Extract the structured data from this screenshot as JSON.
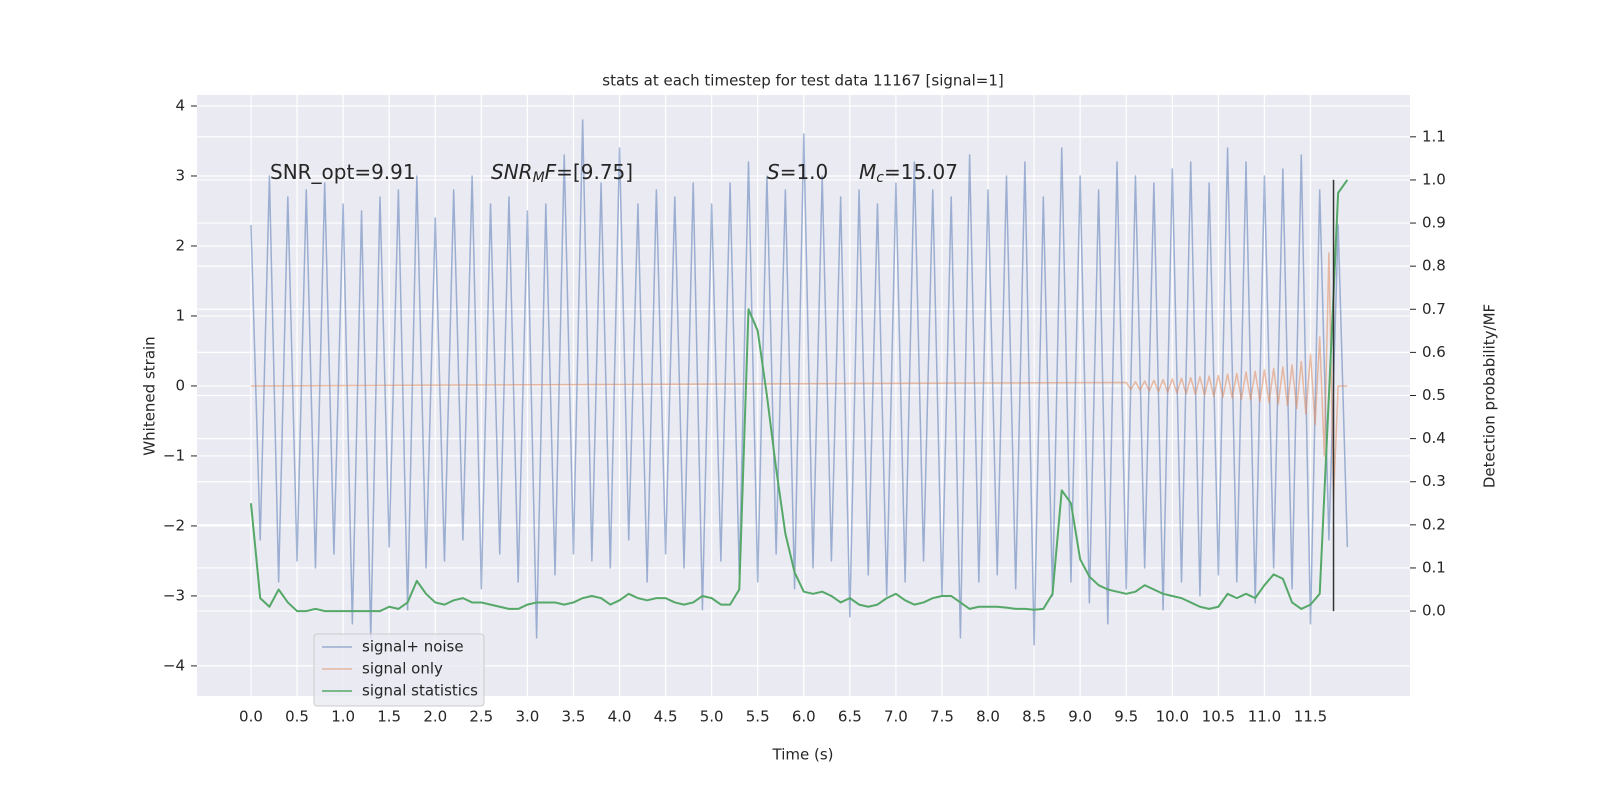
{
  "chart_data": {
    "type": "line",
    "title": "stats at each timestep for test data 11167 [signal=1]",
    "xlabel": "Time (s)",
    "ylabel": "Whitened strain",
    "y2label": "Detection probability/MF",
    "xlim": [
      -0.586,
      12.58
    ],
    "ylim": [
      -4.43,
      4.157
    ],
    "y2lim": [
      -0.197,
      1.197
    ],
    "xticks": [
      {
        "value": 0,
        "label": "0.0"
      },
      {
        "value": 0.5,
        "label": "0.5"
      },
      {
        "value": 1,
        "label": "1.0"
      },
      {
        "value": 1.5,
        "label": "1.5"
      },
      {
        "value": 2,
        "label": "2.0"
      },
      {
        "value": 2.5,
        "label": "2.5"
      },
      {
        "value": 3,
        "label": "3.0"
      },
      {
        "value": 3.5,
        "label": "3.5"
      },
      {
        "value": 4,
        "label": "4.0"
      },
      {
        "value": 4.5,
        "label": "4.5"
      },
      {
        "value": 5,
        "label": "5.0"
      },
      {
        "value": 5.5,
        "label": "5.5"
      },
      {
        "value": 6,
        "label": "6.0"
      },
      {
        "value": 6.5,
        "label": "6.5"
      },
      {
        "value": 7,
        "label": "7.0"
      },
      {
        "value": 7.5,
        "label": "7.5"
      },
      {
        "value": 8,
        "label": "8.0"
      },
      {
        "value": 8.5,
        "label": "8.5"
      },
      {
        "value": 9,
        "label": "9.0"
      },
      {
        "value": 9.5,
        "label": "9.5"
      },
      {
        "value": 10,
        "label": "10.0"
      },
      {
        "value": 10.5,
        "label": "10.5"
      },
      {
        "value": 11,
        "label": "11.0"
      },
      {
        "value": 11.5,
        "label": "11.5"
      }
    ],
    "yticks": [
      {
        "value": -4,
        "label": "−4"
      },
      {
        "value": -3,
        "label": "−3"
      },
      {
        "value": -2,
        "label": "−2"
      },
      {
        "value": -1,
        "label": "−1"
      },
      0,
      1,
      2,
      3,
      4
    ],
    "y2ticks": [
      {
        "value": 0,
        "label": "0.0"
      },
      {
        "value": 0.1,
        "label": "0.1"
      },
      {
        "value": 0.2,
        "label": "0.2"
      },
      {
        "value": 0.3,
        "label": "0.3"
      },
      {
        "value": 0.4,
        "label": "0.4"
      },
      {
        "value": 0.5,
        "label": "0.5"
      },
      {
        "value": 0.6,
        "label": "0.6"
      },
      {
        "value": 0.7,
        "label": "0.7"
      },
      {
        "value": 0.8,
        "label": "0.8"
      },
      {
        "value": 0.9,
        "label": "0.9"
      },
      {
        "value": 1,
        "label": "1.0"
      },
      {
        "value": 1.1,
        "label": "1.1"
      }
    ],
    "grid": true,
    "legend": "lower left",
    "annotations": [
      [
        {
          "text": "SNR_opt=9.91"
        }
      ],
      [
        {
          "text": "SNR",
          "italic": true
        },
        {
          "text": "M",
          "italic": true,
          "sub": true
        },
        {
          "text": "F",
          "italic": true
        },
        {
          "text": "=[9.75]"
        }
      ],
      [
        {
          "text": "S",
          "italic": true
        },
        {
          "text": "=1.0"
        }
      ],
      [
        {
          "text": "M",
          "italic": true
        },
        {
          "text": "c",
          "italic": true,
          "sub": true
        },
        {
          "text": "=15.07"
        }
      ]
    ],
    "vline": {
      "x": 11.75,
      "y2": [
        0,
        1
      ],
      "color": "#333333"
    },
    "x": [
      0,
      0.1,
      0.2,
      0.3,
      0.4,
      0.5,
      0.6,
      0.7,
      0.8,
      0.9,
      1,
      1.1,
      1.2,
      1.3,
      1.4,
      1.5,
      1.6,
      1.7,
      1.8,
      1.9,
      2,
      2.1,
      2.2,
      2.3,
      2.4,
      2.5,
      2.6,
      2.7,
      2.8,
      2.9,
      3,
      3.1,
      3.2,
      3.3,
      3.4,
      3.5,
      3.6,
      3.7,
      3.8,
      3.9,
      4,
      4.1,
      4.2,
      4.3,
      4.4,
      4.5,
      4.6,
      4.7,
      4.8,
      4.9,
      5,
      5.1,
      5.2,
      5.3,
      5.4,
      5.5,
      5.6,
      5.7,
      5.8,
      5.9,
      6,
      6.1,
      6.2,
      6.3,
      6.4,
      6.5,
      6.6,
      6.7,
      6.8,
      6.9,
      7,
      7.1,
      7.2,
      7.3,
      7.4,
      7.5,
      7.6,
      7.7,
      7.8,
      7.9,
      8,
      8.1,
      8.2,
      8.3,
      8.4,
      8.5,
      8.6,
      8.7,
      8.8,
      8.9,
      9,
      9.1,
      9.2,
      9.3,
      9.4,
      9.5,
      9.6,
      9.7,
      9.8,
      9.9,
      10,
      10.1,
      10.2,
      10.3,
      10.4,
      10.5,
      10.6,
      10.7,
      10.8,
      10.9,
      11,
      11.1,
      11.2,
      11.3,
      11.4,
      11.5,
      11.6,
      11.7,
      11.8,
      11.9
    ],
    "series": [
      {
        "name": "signal+ noise",
        "color": "#4c72b0",
        "values": [
          2.3,
          -2.2,
          3.0,
          -2.8,
          2.7,
          -2.5,
          2.8,
          -2.6,
          2.9,
          -2.4,
          2.6,
          -3.4,
          2.5,
          -3.6,
          2.7,
          -2.3,
          2.8,
          -3.2,
          3.0,
          -2.6,
          2.4,
          -2.5,
          2.8,
          -2.2,
          3.0,
          -2.9,
          2.6,
          -2.4,
          2.7,
          -2.8,
          2.5,
          -3.6,
          2.6,
          -2.7,
          3.3,
          -2.4,
          3.8,
          -2.5,
          2.9,
          -2.6,
          3.4,
          -2.2,
          2.6,
          -2.8,
          2.8,
          -2.4,
          2.7,
          -2.6,
          2.9,
          -3.2,
          2.6,
          -2.5,
          2.9,
          -2.7,
          3.2,
          -2.8,
          3.0,
          -2.4,
          2.8,
          -2.9,
          3.6,
          -2.6,
          3.0,
          -2.5,
          2.7,
          -3.3,
          2.8,
          -2.7,
          2.6,
          -3.0,
          2.9,
          -2.8,
          3.2,
          -2.5,
          2.8,
          -3.0,
          2.7,
          -3.6,
          3.3,
          -2.8,
          2.8,
          -2.7,
          3.0,
          -2.9,
          3.2,
          -3.7,
          2.7,
          -3.0,
          3.4,
          -2.8,
          3.0,
          -3.1,
          2.8,
          -3.4,
          3.2,
          -2.9,
          3.0,
          -2.6,
          2.9,
          -3.2,
          3.1,
          -2.8,
          3.2,
          -3.0,
          2.9,
          -2.7,
          3.4,
          -2.8,
          3.2,
          -3.1,
          3.0,
          -2.6,
          3.1,
          -2.9,
          3.3,
          -3.4,
          2.8,
          -2.2,
          2.3,
          -2.3
        ]
      },
      {
        "name": "signal only",
        "color": "#dd8452",
        "x": [
          0,
          9.5,
          9.55,
          9.6,
          9.65,
          9.7,
          9.75,
          9.8,
          9.85,
          9.9,
          9.95,
          10,
          10.05,
          10.1,
          10.15,
          10.2,
          10.25,
          10.3,
          10.35,
          10.4,
          10.45,
          10.5,
          10.55,
          10.6,
          10.65,
          10.7,
          10.75,
          10.8,
          10.85,
          10.9,
          10.95,
          11,
          11.05,
          11.1,
          11.15,
          11.2,
          11.25,
          11.3,
          11.35,
          11.4,
          11.45,
          11.5,
          11.55,
          11.6,
          11.65,
          11.7,
          11.75,
          11.8,
          11.9
        ],
        "values": [
          0,
          0.05,
          -0.05,
          0.06,
          -0.06,
          0.07,
          -0.07,
          0.08,
          -0.08,
          0.09,
          -0.09,
          0.1,
          -0.1,
          0.11,
          -0.11,
          0.12,
          -0.12,
          0.13,
          -0.13,
          0.14,
          -0.15,
          0.15,
          -0.16,
          0.17,
          -0.17,
          0.18,
          -0.19,
          0.2,
          -0.2,
          0.21,
          -0.22,
          0.23,
          -0.24,
          0.25,
          -0.26,
          0.27,
          -0.28,
          0.3,
          -0.32,
          0.35,
          -0.4,
          0.45,
          -0.55,
          0.7,
          -1.0,
          1.9,
          -1.6,
          0,
          0
        ]
      },
      {
        "name": "signal statistics",
        "color": "#55a868",
        "axis": "y2",
        "values": [
          0.25,
          0.03,
          0.01,
          0.05,
          0.02,
          0,
          0,
          0.005,
          0,
          0,
          0,
          0,
          0,
          0,
          0,
          0.01,
          0.005,
          0.02,
          0.07,
          0.04,
          0.02,
          0.015,
          0.025,
          0.03,
          0.02,
          0.02,
          0.015,
          0.01,
          0.005,
          0.005,
          0.015,
          0.02,
          0.02,
          0.02,
          0.015,
          0.02,
          0.03,
          0.035,
          0.03,
          0.015,
          0.025,
          0.04,
          0.03,
          0.025,
          0.03,
          0.03,
          0.02,
          0.015,
          0.02,
          0.035,
          0.03,
          0.015,
          0.015,
          0.05,
          0.7,
          0.65,
          0.5,
          0.33,
          0.18,
          0.09,
          0.045,
          0.04,
          0.045,
          0.035,
          0.02,
          0.03,
          0.015,
          0.01,
          0.015,
          0.03,
          0.04,
          0.025,
          0.015,
          0.02,
          0.03,
          0.035,
          0.035,
          0.02,
          0.005,
          0.01,
          0.01,
          0.01,
          0.008,
          0.005,
          0.005,
          0.003,
          0.005,
          0.04,
          0.28,
          0.25,
          0.12,
          0.08,
          0.06,
          0.05,
          0.045,
          0.04,
          0.045,
          0.06,
          0.05,
          0.04,
          0.035,
          0.03,
          0.02,
          0.01,
          0.005,
          0.01,
          0.04,
          0.03,
          0.04,
          0.03,
          0.06,
          0.085,
          0.075,
          0.02,
          0.005,
          0.015,
          0.04,
          0.5,
          0.97,
          1.0
        ]
      }
    ]
  }
}
